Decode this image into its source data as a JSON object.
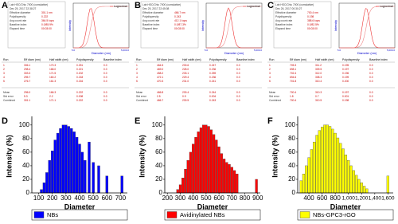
{
  "screenshots": [
    {
      "panel_label": "A",
      "info": [
        [
          "Lab HSC/Chiu 7000 (cumulative)",
          ""
        ],
        [
          "Dec 25, 2017 22:38:27",
          ""
        ],
        [
          "Effective diameter",
          "301.1 nm"
        ],
        [
          "Polydispersity",
          "0.222"
        ],
        [
          "Avg count rate",
          "364.5 kcps"
        ],
        [
          "Baseline index",
          "0.0/85.9%"
        ],
        [
          "Elapsed time",
          "00:03:00"
        ]
      ],
      "legend": "Lognormal",
      "xlabel": "Diameter (nm)",
      "ylabel": "Intensity",
      "xticks": [
        "5.0",
        "5,000.0"
      ],
      "table": {
        "header": [
          "Run",
          "Eff diam (nm)",
          "Half width (nm)",
          "Polydispersity",
          "Baseline index"
        ],
        "rows": [
          [
            "1",
            "306.1",
            "170.3",
            "0.251",
            "0.0"
          ],
          [
            "2",
            "298.4",
            "168.0",
            "0.221",
            "0.0"
          ],
          [
            "3",
            "303.3",
            "171.5",
            "0.202",
            "0.0"
          ],
          [
            "4",
            "295.7",
            "160.2",
            "0.218",
            "0.0"
          ],
          [
            "5",
            "276.7",
            "161.3",
            "0.216",
            "0.0"
          ]
        ],
        "summary": [
          [
            "Mean",
            "296.0",
            "166.3",
            "0.222",
            "0.0"
          ],
          [
            "Std error",
            "5.3",
            "2.2",
            "0.008",
            "0.0"
          ],
          [
            "Combined",
            "301.1",
            "171.1",
            "0.222",
            "0.0"
          ]
        ]
      }
    },
    {
      "panel_label": "B",
      "info": [
        [
          "Lab HSC/Chiu 7000 (cumulative)",
          ""
        ],
        [
          "Dec 25, 2017 22:45:08",
          ""
        ],
        [
          "Effective diameter",
          "466.7 nm"
        ],
        [
          "Polydispersity",
          "0.243"
        ],
        [
          "Avg count rate",
          "412.1 kcps"
        ],
        [
          "Baseline index",
          "0.0/87.3%"
        ],
        [
          "Elapsed time",
          "00:03:00"
        ]
      ],
      "legend": "Lognormal",
      "xlabel": "Diameter (nm)",
      "ylabel": "Intensity",
      "xticks": [
        "5.0",
        "5,000.0"
      ],
      "table": {
        "header": [
          "Run",
          "Eff diam (nm)",
          "Half width (nm)",
          "Polydispersity",
          "Baseline index"
        ],
        "rows": [
          [
            "1",
            "464.5",
            "230.6",
            "0.247",
            "0.0"
          ],
          [
            "2",
            "469.0",
            "228.0",
            "0.236",
            "0.0"
          ],
          [
            "3",
            "458.2",
            "233.1",
            "0.259",
            "0.0"
          ],
          [
            "4",
            "472.1",
            "229.4",
            "0.236",
            "0.0"
          ],
          [
            "5",
            "470.3",
            "231.0",
            "0.241",
            "0.0"
          ]
        ],
        "summary": [
          [
            "Mean",
            "466.8",
            "230.4",
            "0.244",
            "0.0"
          ],
          [
            "Std error",
            "2.5",
            "0.9",
            "0.004",
            "0.0"
          ],
          [
            "Combined",
            "466.7",
            "230.5",
            "0.243",
            "0.0"
          ]
        ]
      }
    },
    {
      "panel_label": "C",
      "info": [
        [
          "Lab HSC/Chiu 7000 (cumulative)",
          ""
        ],
        [
          "Dec 26, 2017 00:30:27",
          ""
        ],
        [
          "Effective diameter",
          "700.4 nm"
        ],
        [
          "Polydispersity",
          "0.198"
        ],
        [
          "Avg count rate",
          "388.6 kcps"
        ],
        [
          "Baseline index",
          "0.0/82.5%"
        ],
        [
          "Elapsed time",
          "00:03:00"
        ]
      ],
      "legend": "Lognormal",
      "xlabel": "Diameter (nm)",
      "ylabel": "Intensity",
      "xticks": [
        "5.0",
        "5,000.0"
      ],
      "table": {
        "header": [
          "Run",
          "Eff diam (nm)",
          "Half width (nm)",
          "Polydispersity",
          "Baseline index"
        ],
        "rows": [
          [
            "1",
            "705.3",
            "311.2",
            "0.195",
            "0.0"
          ],
          [
            "2",
            "698.1",
            "309.5",
            "0.197",
            "0.0"
          ],
          [
            "3",
            "702.4",
            "312.0",
            "0.196",
            "0.0"
          ],
          [
            "4",
            "694.6",
            "308.3",
            "0.199",
            "0.0"
          ],
          [
            "5",
            "701.8",
            "310.4",
            "0.200",
            "0.0"
          ]
        ],
        "summary": [
          [
            "Mean",
            "700.4",
            "310.3",
            "0.197",
            "0.0"
          ],
          [
            "Std error",
            "1.8",
            "0.7",
            "0.001",
            "0.0"
          ],
          [
            "Combined",
            "700.4",
            "310.5",
            "0.198",
            "0.0"
          ]
        ]
      }
    }
  ],
  "chart_data": [
    {
      "type": "bar",
      "panel_label": "D",
      "xlabel": "Diameter",
      "ylabel": "Intensity (%)",
      "x": [
        120,
        140,
        160,
        180,
        200,
        220,
        240,
        260,
        280,
        300,
        320,
        340,
        360,
        380,
        400,
        420,
        440,
        470,
        500,
        540,
        600,
        710
      ],
      "series": [
        {
          "name": "NBs",
          "color": "#0000ff",
          "values": [
            5,
            15,
            30,
            48,
            62,
            78,
            88,
            95,
            100,
            100,
            98,
            95,
            90,
            82,
            72,
            60,
            48,
            75,
            45,
            40,
            25,
            25
          ]
        }
      ],
      "xlim": [
        50,
        750
      ],
      "xticks": [
        100,
        200,
        300,
        400,
        500,
        600,
        700
      ],
      "ylim": [
        0,
        108
      ],
      "yticks": [
        0,
        20,
        40,
        60,
        80,
        100
      ]
    },
    {
      "type": "bar",
      "panel_label": "E",
      "xlabel": "Diameter",
      "ylabel": "Intensity (%)",
      "x": [
        280,
        300,
        320,
        340,
        360,
        380,
        400,
        420,
        440,
        460,
        480,
        500,
        520,
        540,
        560,
        580,
        600,
        620,
        640,
        660,
        680,
        700,
        720,
        740,
        890
      ],
      "series": [
        {
          "name": "Avidinylated NBs",
          "color": "#ff0000",
          "values": [
            5,
            12,
            22,
            35,
            48,
            60,
            72,
            82,
            90,
            96,
            100,
            100,
            98,
            93,
            86,
            78,
            68,
            58,
            50,
            45,
            42,
            38,
            33,
            28,
            20
          ]
        }
      ],
      "xlim": [
        180,
        920
      ],
      "xticks": [
        200,
        300,
        400,
        500,
        600,
        700,
        800,
        900
      ],
      "ylim": [
        0,
        108
      ],
      "yticks": [
        0,
        20,
        40,
        60,
        80,
        100
      ]
    },
    {
      "type": "bar",
      "panel_label": "F",
      "xlabel": "Diameter",
      "ylabel": "Intensity (%)",
      "x": [
        280,
        320,
        360,
        400,
        440,
        480,
        520,
        560,
        600,
        640,
        680,
        720,
        760,
        800,
        840,
        880,
        920,
        960,
        1000,
        1040,
        1080,
        1120,
        1160,
        1200,
        1240,
        1280,
        1600
      ],
      "series": [
        {
          "name": "NBs-GPC3-rGO",
          "color": "#ffff00",
          "values": [
            18,
            28,
            40,
            52,
            64,
            75,
            85,
            92,
            97,
            100,
            100,
            98,
            94,
            88,
            81,
            73,
            65,
            56,
            48,
            40,
            33,
            26,
            20,
            15,
            10,
            6,
            25
          ]
        }
      ],
      "xlim": [
        230,
        1680
      ],
      "xticks": [
        400,
        600,
        800,
        {
          "value": 1000,
          "label": "1,000"
        },
        {
          "value": 1200,
          "label": "1,200"
        },
        {
          "value": 1400,
          "label": "1,400"
        },
        {
          "value": 1600,
          "label": "1,600"
        }
      ],
      "ylim": [
        0,
        108
      ],
      "yticks": [
        0,
        20,
        40,
        60,
        80,
        100
      ]
    }
  ]
}
